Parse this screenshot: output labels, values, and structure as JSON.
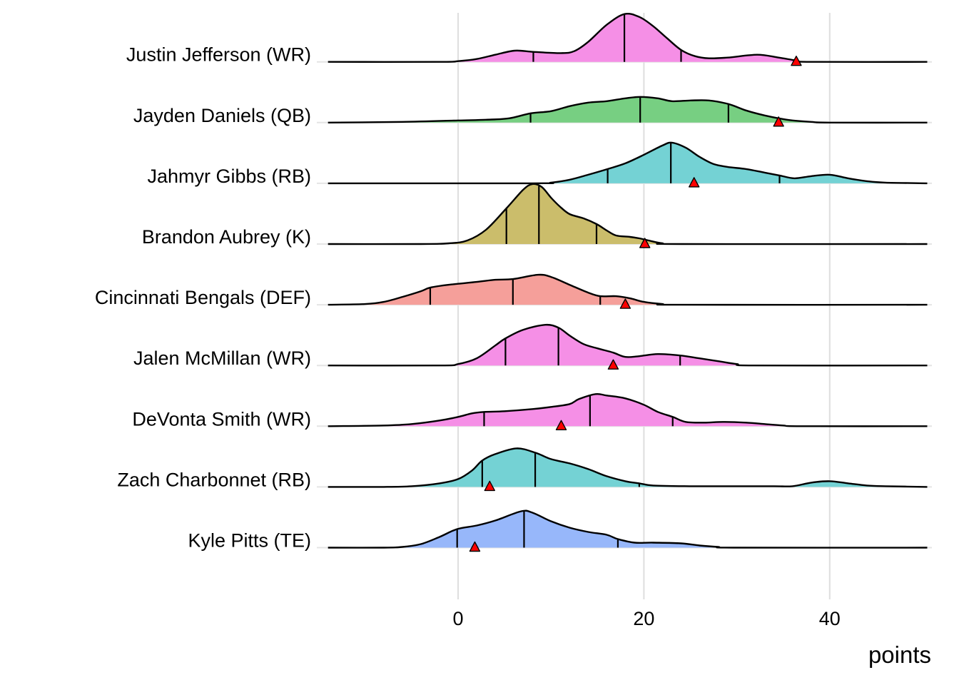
{
  "chart_data": {
    "type": "ridgeline",
    "title": "",
    "xlabel": "points",
    "ylabel": "",
    "xlim": [
      -14,
      50.5
    ],
    "x_ticks": [
      0,
      20,
      40
    ],
    "x_tick_labels": [
      "0",
      "20",
      "40"
    ],
    "grid": true,
    "legend": "none",
    "marker": {
      "shape": "triangle",
      "color": "#ff0000",
      "description": "actual points scored"
    },
    "quantile_lines": "25th, 50th, 75th percentiles",
    "series": [
      {
        "name": "Justin Jefferson (WR)",
        "color": "#f58fe6",
        "quantiles": [
          8.1,
          17.9,
          24.0
        ],
        "marker": 36.4,
        "density": [
          [
            -14,
            0
          ],
          [
            -2,
            0
          ],
          [
            0,
            0.01
          ],
          [
            2,
            0.04
          ],
          [
            4,
            0.1
          ],
          [
            6.1,
            0.157
          ],
          [
            8.1,
            0.14
          ],
          [
            11.1,
            0.123
          ],
          [
            12.5,
            0.15
          ],
          [
            14,
            0.28
          ],
          [
            16,
            0.52
          ],
          [
            17.9,
            0.67
          ],
          [
            19.5,
            0.63
          ],
          [
            21,
            0.5
          ],
          [
            22.5,
            0.33
          ],
          [
            24,
            0.167
          ],
          [
            25.5,
            0.08
          ],
          [
            27,
            0.05
          ],
          [
            29,
            0.06
          ],
          [
            32.2,
            0.1
          ],
          [
            34.5,
            0.06
          ],
          [
            36.4,
            0.02
          ],
          [
            38,
            0
          ],
          [
            50.5,
            0
          ]
        ]
      },
      {
        "name": "Jayden Daniels (QB)",
        "color": "#77cf82",
        "quantiles": [
          7.8,
          19.6,
          29.1
        ],
        "marker": 34.5,
        "density": [
          [
            -14,
            0
          ],
          [
            -6,
            0.01
          ],
          [
            0,
            0.03
          ],
          [
            3,
            0.04
          ],
          [
            5.5,
            0.06
          ],
          [
            7.8,
            0.13
          ],
          [
            10,
            0.16
          ],
          [
            12,
            0.23
          ],
          [
            14,
            0.28
          ],
          [
            16,
            0.3
          ],
          [
            18,
            0.34
          ],
          [
            19.6,
            0.36
          ],
          [
            21.5,
            0.34
          ],
          [
            23,
            0.3
          ],
          [
            25,
            0.31
          ],
          [
            27,
            0.31
          ],
          [
            29.1,
            0.26
          ],
          [
            31,
            0.17
          ],
          [
            33,
            0.1
          ],
          [
            34.5,
            0.06
          ],
          [
            36,
            0.03
          ],
          [
            38,
            0.01
          ],
          [
            40,
            0
          ],
          [
            50.5,
            0
          ]
        ]
      },
      {
        "name": "Jahmyr Gibbs (RB)",
        "color": "#74d2d4",
        "quantiles": [
          16.1,
          22.9,
          34.6
        ],
        "marker": 25.4,
        "density": [
          [
            -14,
            0
          ],
          [
            8,
            0
          ],
          [
            10,
            0.01
          ],
          [
            12,
            0.05
          ],
          [
            14,
            0.12
          ],
          [
            16.1,
            0.2
          ],
          [
            18,
            0.28
          ],
          [
            20,
            0.4
          ],
          [
            22,
            0.53
          ],
          [
            23,
            0.57
          ],
          [
            24.5,
            0.5
          ],
          [
            26,
            0.37
          ],
          [
            27.5,
            0.27
          ],
          [
            29,
            0.23
          ],
          [
            31,
            0.2
          ],
          [
            33,
            0.15
          ],
          [
            34.6,
            0.11
          ],
          [
            36.2,
            0.07
          ],
          [
            38,
            0.1
          ],
          [
            40,
            0.12
          ],
          [
            42,
            0.07
          ],
          [
            44,
            0.03
          ],
          [
            46,
            0.01
          ],
          [
            50.5,
            0
          ]
        ]
      },
      {
        "name": "Brandon Aubrey (K)",
        "color": "#cbbd6b",
        "quantiles": [
          5.2,
          8.7,
          14.9
        ],
        "marker": 20.1,
        "density": [
          [
            -14,
            0
          ],
          [
            -4,
            0
          ],
          [
            -1,
            0.01
          ],
          [
            1,
            0.05
          ],
          [
            3,
            0.2
          ],
          [
            5.2,
            0.5
          ],
          [
            7,
            0.76
          ],
          [
            8,
            0.84
          ],
          [
            9,
            0.8
          ],
          [
            10,
            0.65
          ],
          [
            11,
            0.52
          ],
          [
            12,
            0.42
          ],
          [
            13.5,
            0.36
          ],
          [
            14.9,
            0.28
          ],
          [
            16,
            0.19
          ],
          [
            17,
            0.12
          ],
          [
            18.5,
            0.1
          ],
          [
            19.5,
            0.08
          ],
          [
            20.5,
            0.05
          ],
          [
            22,
            0.01
          ],
          [
            24,
            0
          ],
          [
            50.5,
            0
          ]
        ]
      },
      {
        "name": "Cincinnati Bengals (DEF)",
        "color": "#f59f9a",
        "quantiles": [
          -3.0,
          5.9,
          15.3
        ],
        "marker": 18.0,
        "density": [
          [
            -14,
            0
          ],
          [
            -10,
            0.01
          ],
          [
            -8,
            0.04
          ],
          [
            -6,
            0.11
          ],
          [
            -4,
            0.19
          ],
          [
            -3,
            0.24
          ],
          [
            -1,
            0.28
          ],
          [
            2,
            0.32
          ],
          [
            4,
            0.35
          ],
          [
            5.9,
            0.36
          ],
          [
            8.6,
            0.42
          ],
          [
            10,
            0.39
          ],
          [
            12,
            0.28
          ],
          [
            14,
            0.17
          ],
          [
            15.3,
            0.12
          ],
          [
            17,
            0.12
          ],
          [
            18.5,
            0.09
          ],
          [
            20,
            0.04
          ],
          [
            22,
            0.01
          ],
          [
            24,
            0
          ],
          [
            50.5,
            0
          ]
        ]
      },
      {
        "name": "Jalen McMillan (WR)",
        "color": "#f58fe6",
        "quantiles": [
          5.1,
          10.8,
          23.9
        ],
        "marker": 16.7,
        "density": [
          [
            -14,
            0
          ],
          [
            -2,
            0
          ],
          [
            0,
            0.02
          ],
          [
            2,
            0.1
          ],
          [
            4,
            0.28
          ],
          [
            5.1,
            0.38
          ],
          [
            7,
            0.5
          ],
          [
            9.4,
            0.57
          ],
          [
            10.8,
            0.53
          ],
          [
            12,
            0.42
          ],
          [
            13.5,
            0.3
          ],
          [
            15,
            0.24
          ],
          [
            16.7,
            0.18
          ],
          [
            18,
            0.12
          ],
          [
            19.5,
            0.13
          ],
          [
            21.5,
            0.16
          ],
          [
            23.9,
            0.14
          ],
          [
            26,
            0.1
          ],
          [
            28,
            0.06
          ],
          [
            30,
            0.02
          ],
          [
            32,
            0
          ],
          [
            50.5,
            0
          ]
        ]
      },
      {
        "name": "DeVonta Smith (WR)",
        "color": "#f58fe6",
        "quantiles": [
          2.8,
          14.2,
          23.1
        ],
        "marker": 11.1,
        "density": [
          [
            -14,
            0
          ],
          [
            -8,
            0.01
          ],
          [
            -5,
            0.03
          ],
          [
            -2,
            0.08
          ],
          [
            0,
            0.13
          ],
          [
            1.5,
            0.18
          ],
          [
            2.8,
            0.2
          ],
          [
            5,
            0.21
          ],
          [
            8,
            0.24
          ],
          [
            10,
            0.27
          ],
          [
            12,
            0.31
          ],
          [
            13,
            0.38
          ],
          [
            14.8,
            0.45
          ],
          [
            16,
            0.43
          ],
          [
            18,
            0.39
          ],
          [
            20,
            0.3
          ],
          [
            21.5,
            0.2
          ],
          [
            23.1,
            0.13
          ],
          [
            24.5,
            0.06
          ],
          [
            26.5,
            0.05
          ],
          [
            28.5,
            0.06
          ],
          [
            31,
            0.05
          ],
          [
            33,
            0.03
          ],
          [
            35,
            0.01
          ],
          [
            37,
            0
          ],
          [
            50.5,
            0
          ]
        ]
      },
      {
        "name": "Zach Charbonnet (RB)",
        "color": "#74d2d4",
        "quantiles": [
          2.6,
          8.3,
          19.5
        ],
        "marker": 3.4,
        "density": [
          [
            -14,
            0
          ],
          [
            -8,
            0
          ],
          [
            -5,
            0.01
          ],
          [
            -2,
            0.05
          ],
          [
            0,
            0.11
          ],
          [
            1.5,
            0.23
          ],
          [
            2.6,
            0.37
          ],
          [
            4,
            0.46
          ],
          [
            6.3,
            0.54
          ],
          [
            8.3,
            0.48
          ],
          [
            10,
            0.39
          ],
          [
            12,
            0.33
          ],
          [
            14,
            0.25
          ],
          [
            16,
            0.15
          ],
          [
            18,
            0.08
          ],
          [
            19.5,
            0.05
          ],
          [
            21,
            0.02
          ],
          [
            25,
            0.01
          ],
          [
            30,
            0.01
          ],
          [
            34,
            0.01
          ],
          [
            36,
            0.01
          ],
          [
            38,
            0.06
          ],
          [
            40,
            0.08
          ],
          [
            42,
            0.05
          ],
          [
            44,
            0.02
          ],
          [
            46,
            0.01
          ],
          [
            50.5,
            0
          ]
        ]
      },
      {
        "name": "Kyle Pitts (TE)",
        "color": "#97b7fa",
        "quantiles": [
          -0.1,
          7.1,
          17.2
        ],
        "marker": 1.8,
        "density": [
          [
            -14,
            0
          ],
          [
            -8,
            0
          ],
          [
            -6,
            0.01
          ],
          [
            -4,
            0.05
          ],
          [
            -2,
            0.15
          ],
          [
            -0.1,
            0.26
          ],
          [
            2,
            0.31
          ],
          [
            4,
            0.38
          ],
          [
            6.8,
            0.51
          ],
          [
            8,
            0.49
          ],
          [
            10,
            0.37
          ],
          [
            12,
            0.28
          ],
          [
            14,
            0.22
          ],
          [
            16,
            0.18
          ],
          [
            17.2,
            0.12
          ],
          [
            19,
            0.07
          ],
          [
            21,
            0.07
          ],
          [
            24,
            0.06
          ],
          [
            26,
            0.03
          ],
          [
            28,
            0.01
          ],
          [
            30,
            0
          ],
          [
            50.5,
            0
          ]
        ]
      }
    ]
  }
}
